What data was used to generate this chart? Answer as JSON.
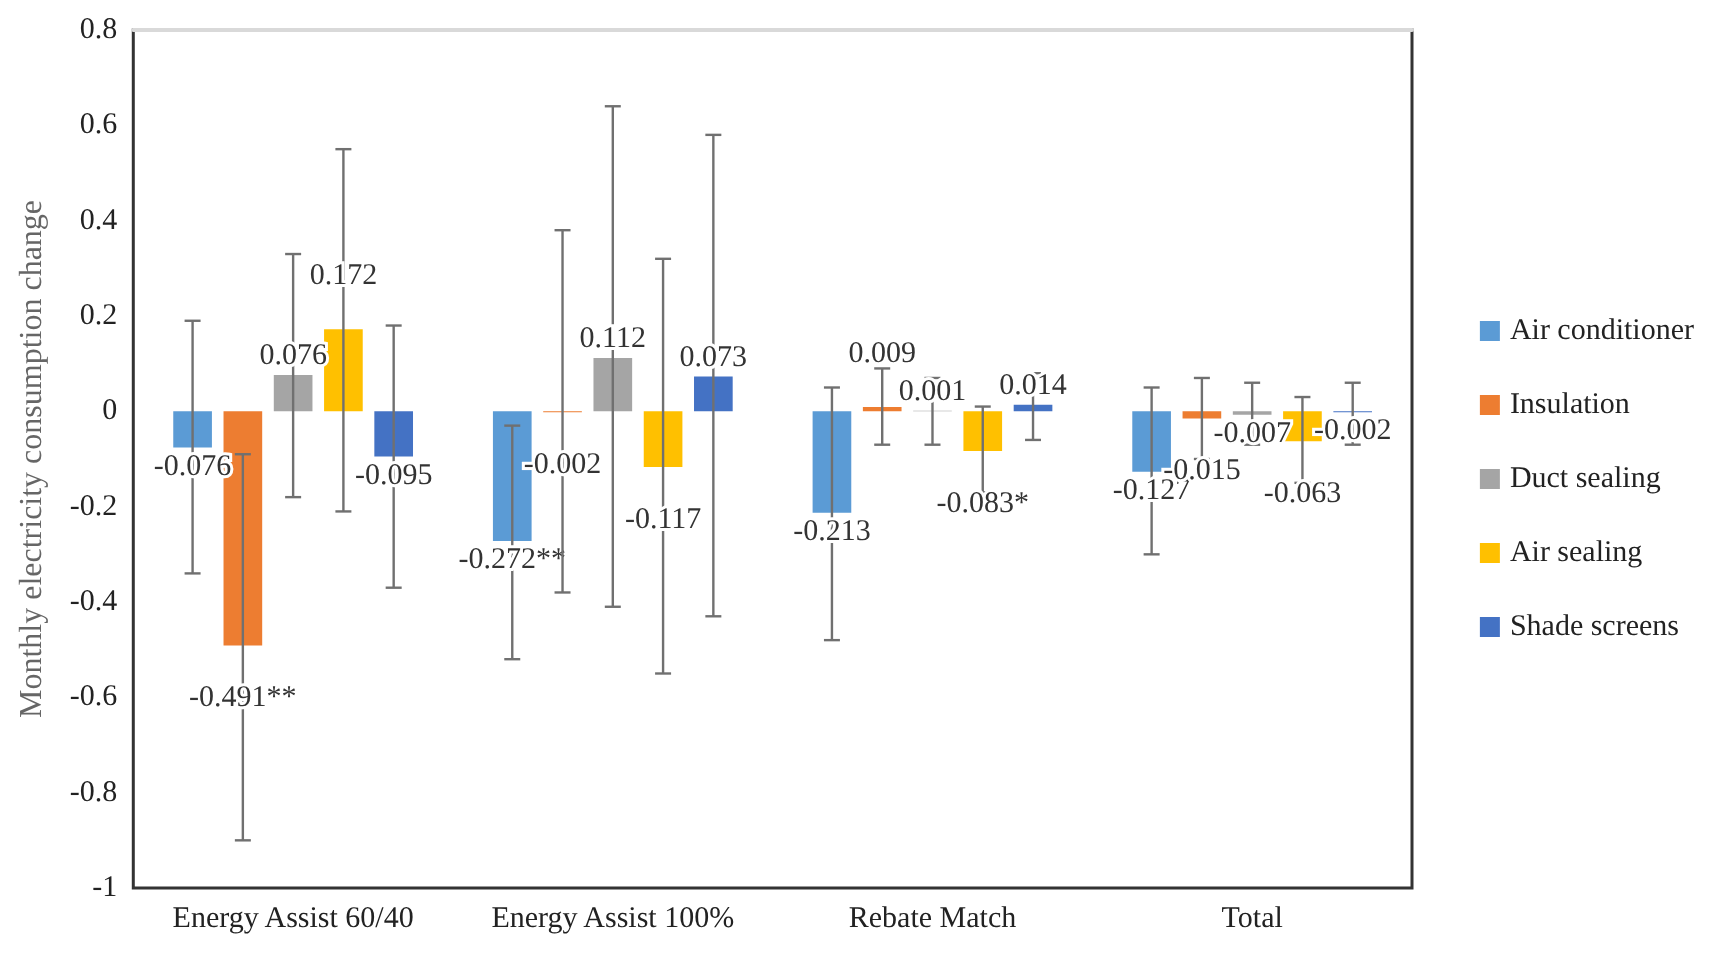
{
  "chart_data": {
    "type": "bar",
    "ylabel": "Monthly electricity consumption change",
    "categories": [
      "Energy Assist 60/40",
      "Energy Assist 100%",
      "Rebate Match",
      "Total"
    ],
    "ylim": [
      -1,
      0.8
    ],
    "yticks": [
      -1,
      -0.8,
      -0.6,
      -0.4,
      -0.2,
      0,
      0.2,
      0.4,
      0.6,
      0.8
    ],
    "grid": false,
    "legend": "right",
    "series": [
      {
        "name": "Air conditioner",
        "color": "#5b9bd5",
        "values": [
          -0.076,
          -0.272,
          -0.213,
          -0.127
        ],
        "errors": [
          [
            -0.34,
            0.19
          ],
          [
            -0.52,
            -0.03
          ],
          [
            -0.48,
            0.05
          ],
          [
            -0.3,
            0.05
          ]
        ],
        "value_labels": [
          "-0.076",
          "-0.272**",
          "-0.213",
          "-0.127"
        ]
      },
      {
        "name": "Insulation",
        "color": "#ed7d31",
        "values": [
          -0.491,
          -0.002,
          0.009,
          -0.015
        ],
        "errors": [
          [
            -0.9,
            -0.09
          ],
          [
            -0.38,
            0.38
          ],
          [
            -0.07,
            0.09
          ],
          [
            -0.1,
            0.07
          ]
        ],
        "value_labels": [
          "-0.491**",
          "-0.002",
          "0.009",
          "-0.015"
        ]
      },
      {
        "name": "Duct sealing",
        "color": "#a5a5a5",
        "values": [
          0.076,
          0.112,
          0.001,
          -0.007
        ],
        "errors": [
          [
            -0.18,
            0.33
          ],
          [
            -0.41,
            0.64
          ],
          [
            -0.07,
            0.07
          ],
          [
            -0.07,
            0.06
          ]
        ],
        "value_labels": [
          "0.076",
          "0.112",
          "0.001",
          "-0.007"
        ]
      },
      {
        "name": "Air sealing",
        "color": "#ffc000",
        "values": [
          0.172,
          -0.117,
          -0.083,
          -0.063
        ],
        "errors": [
          [
            -0.21,
            0.55
          ],
          [
            -0.55,
            0.32
          ],
          [
            -0.17,
            0.01
          ],
          [
            -0.15,
            0.03
          ]
        ],
        "value_labels": [
          "0.172",
          "-0.117",
          "-0.083*",
          "-0.063"
        ]
      },
      {
        "name": "Shade screens",
        "color": "#4472c4",
        "values": [
          -0.095,
          0.073,
          0.014,
          -0.002
        ],
        "errors": [
          [
            -0.37,
            0.18
          ],
          [
            -0.43,
            0.58
          ],
          [
            -0.06,
            0.08
          ],
          [
            -0.07,
            0.06
          ]
        ],
        "value_labels": [
          "-0.095",
          "0.073",
          "0.014",
          "-0.002"
        ]
      }
    ]
  }
}
